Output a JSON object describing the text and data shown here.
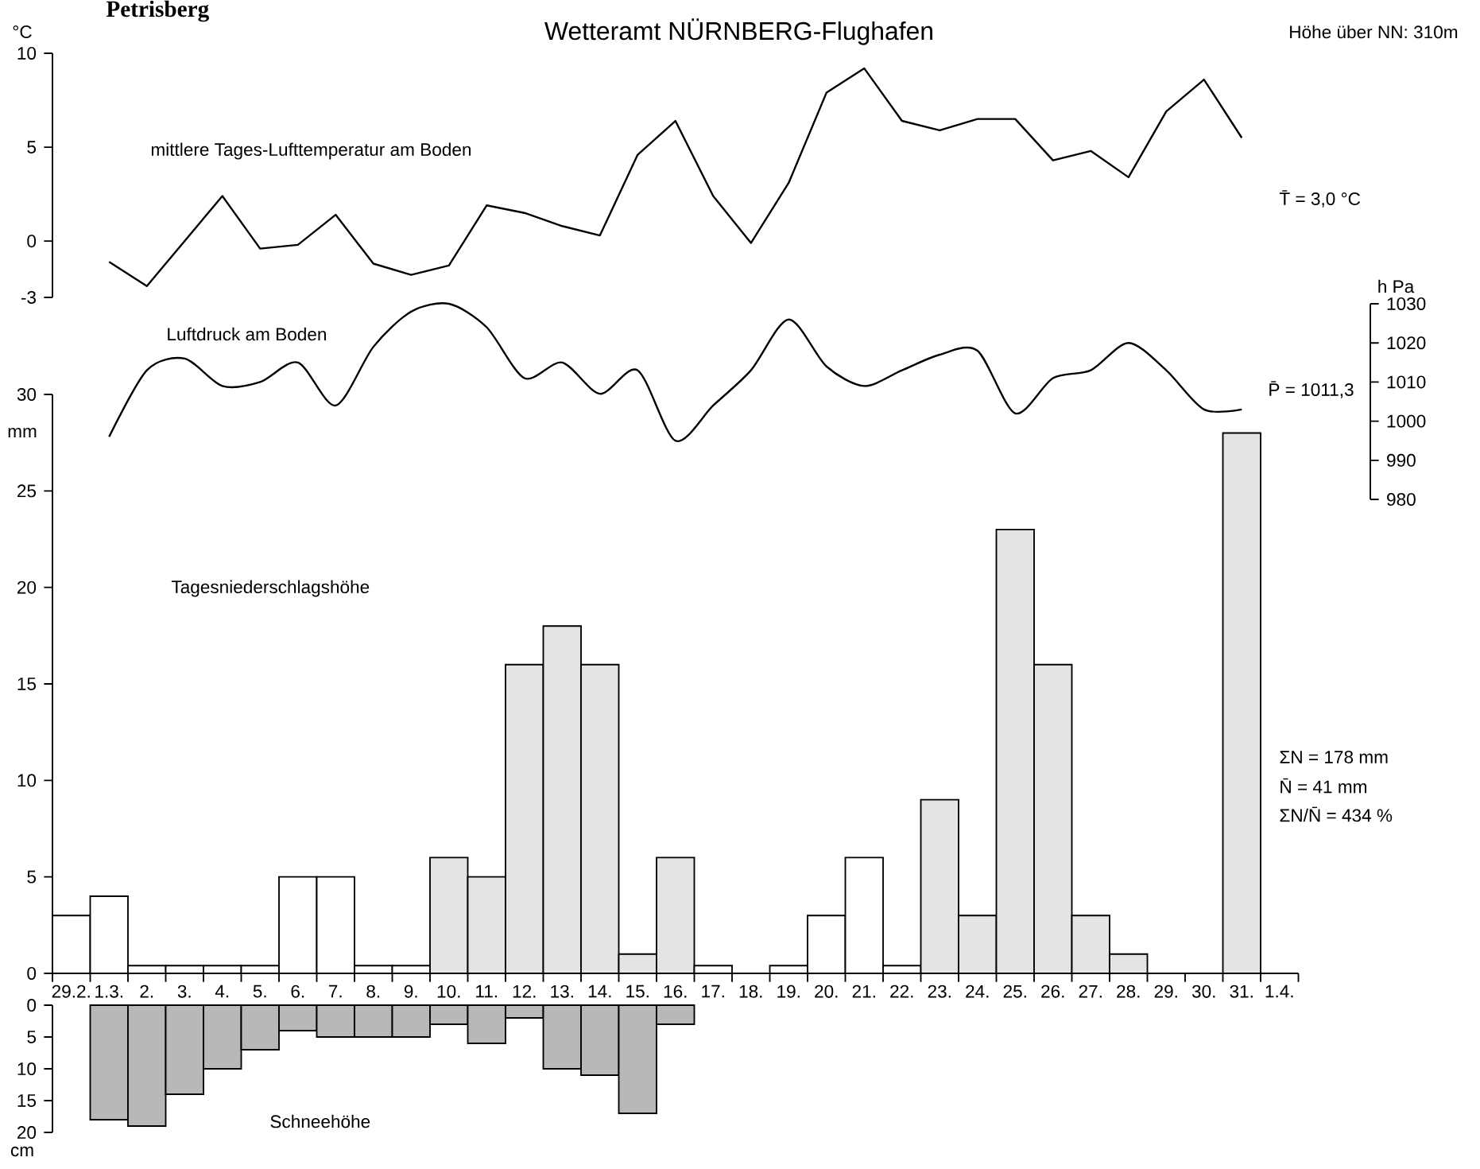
{
  "chart_data": [
    {
      "type": "line",
      "title": "Wetteramt NÜRNBERG-Flughafen",
      "ylabel": "°C",
      "annotations": [
        "Petrisberg",
        "Höhe über NN: 310m",
        "T̄ = 3,0 °C"
      ],
      "categories": [
        null,
        null,
        null,
        null,
        null,
        null,
        null,
        null,
        null,
        null,
        null,
        null,
        null,
        null,
        null,
        null,
        null,
        null,
        null,
        null,
        null,
        null,
        null,
        null,
        null,
        null,
        null,
        null,
        null,
        null,
        null,
        null,
        null
      ],
      "series": [
        {
          "name": "mittlere Tages-Lufttemperatur am Boden",
          "color": "#000000",
          "values": [
            null,
            -1.1,
            -2.4,
            0.0,
            2.4,
            -0.4,
            -0.2,
            1.4,
            -1.2,
            -1.8,
            -1.3,
            1.9,
            1.5,
            0.8,
            0.3,
            4.6,
            6.4,
            2.4,
            -0.1,
            3.1,
            7.9,
            9.2,
            6.4,
            5.9,
            6.5,
            6.5,
            4.3,
            4.8,
            3.4,
            6.9,
            8.6,
            5.5,
            null
          ]
        }
      ],
      "ylim": [
        -3,
        10
      ],
      "yticks": [
        -3,
        0,
        5,
        10
      ],
      "tick_labels": "y",
      "marker": "none"
    },
    {
      "type": "line",
      "ylabel": "h Pa",
      "annotations": [
        "P̄ = 1011,3"
      ],
      "categories": [
        null,
        null,
        null,
        null,
        null,
        null,
        null,
        null,
        null,
        null,
        null,
        null,
        null,
        null,
        null,
        null,
        null,
        null,
        null,
        null,
        null,
        null,
        null,
        null,
        null,
        null,
        null,
        null,
        null,
        null,
        null,
        null,
        null
      ],
      "series": [
        {
          "name": "Luftdruck am Boden",
          "color": "#000000",
          "values": [
            null,
            996,
            1013,
            1016,
            1009,
            1010,
            1015,
            1004,
            1019,
            1028,
            1030,
            1024,
            1011,
            1015,
            1007,
            1013,
            995,
            1004,
            1013,
            1026,
            1014,
            1009,
            1013,
            1017,
            1018,
            1002,
            1011,
            1013,
            1020,
            1013,
            1003,
            1003,
            null
          ]
        }
      ],
      "ylim": [
        980,
        1030
      ],
      "yticks": [
        980,
        990,
        1000,
        1010,
        1020,
        1030
      ],
      "tick_labels": "y",
      "marker": "none"
    },
    {
      "type": "bar",
      "ylabel": "mm",
      "annotations": [
        "ΣN = 178 mm",
        "N̄ = 41 mm",
        "ΣN/N̄ = 434 %"
      ],
      "categories": [
        "29.2.",
        "1.3.",
        "2.",
        "3.",
        "4.",
        "5.",
        "6.",
        "7.",
        "8.",
        "9.",
        "10.",
        "11.",
        "12.",
        "13.",
        "14.",
        "15.",
        "16.",
        "17.",
        "18.",
        "19.",
        "20.",
        "21.",
        "22.",
        "23.",
        "24.",
        "25.",
        "26.",
        "27.",
        "28.",
        "29.",
        "30.",
        "31.",
        "1.4."
      ],
      "series": [
        {
          "name": "Tagesniederschlagshöhe",
          "values": [
            3,
            4,
            0.4,
            0.4,
            0.4,
            0.4,
            5,
            5,
            0.4,
            0.4,
            6,
            5,
            16,
            18,
            16,
            1,
            6,
            0.4,
            null,
            0.4,
            3,
            6,
            0.4,
            9,
            3,
            23,
            16,
            3,
            1,
            null,
            null,
            28,
            null
          ],
          "colors": [
            "#ffffff",
            "#ffffff",
            "#ffffff",
            "#ffffff",
            "#ffffff",
            "#ffffff",
            "#ffffff",
            "#ffffff",
            "#ffffff",
            "#ffffff",
            "#e4e4e4",
            "#e4e4e4",
            "#e4e4e4",
            "#e4e4e4",
            "#e4e4e4",
            "#e4e4e4",
            "#e4e4e4",
            "#ffffff",
            "#ffffff",
            "#ffffff",
            "#ffffff",
            "#ffffff",
            "#ffffff",
            "#e4e4e4",
            "#e4e4e4",
            "#e4e4e4",
            "#e4e4e4",
            "#e4e4e4",
            "#e4e4e4",
            "#ffffff",
            "#ffffff",
            "#e4e4e4",
            "#ffffff"
          ]
        }
      ],
      "ylim": [
        0,
        30
      ],
      "yticks": [
        0,
        5,
        10,
        15,
        20,
        25,
        30
      ]
    },
    {
      "type": "bar",
      "ylabel": "cm",
      "categories": [
        null,
        null,
        null,
        null,
        null,
        null,
        null,
        null,
        null,
        null,
        null,
        null,
        null,
        null,
        null,
        null,
        null,
        null,
        null,
        null,
        null,
        null,
        null,
        null,
        null,
        null,
        null,
        null,
        null,
        null,
        null,
        null,
        null
      ],
      "series": [
        {
          "name": "Schneehöhe",
          "color": "#b8b8b8",
          "values": [
            null,
            18,
            19,
            14,
            10,
            7,
            4,
            5,
            5,
            5,
            3,
            6,
            2,
            10,
            11,
            17,
            3,
            null,
            null,
            null,
            null,
            null,
            null,
            null,
            null,
            null,
            null,
            null,
            null,
            null,
            null,
            null,
            null
          ]
        }
      ],
      "ylim": [
        20,
        0
      ],
      "yticks": [
        0,
        5,
        10,
        15,
        20
      ],
      "tick_labels": "y"
    }
  ]
}
